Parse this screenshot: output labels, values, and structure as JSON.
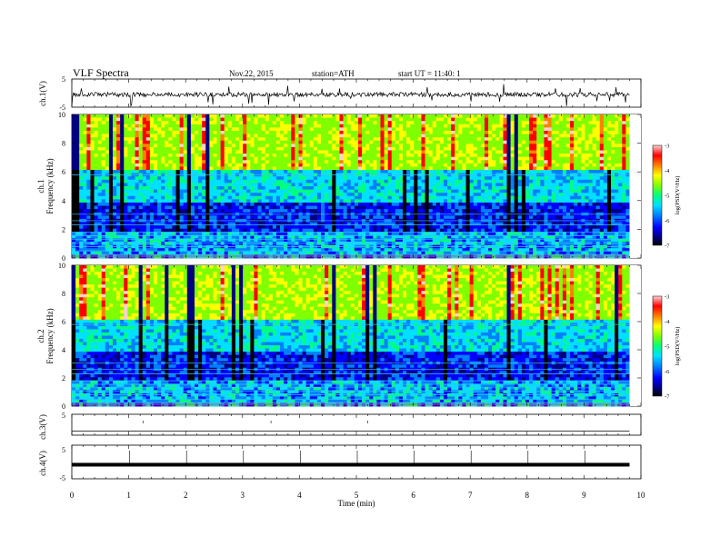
{
  "header": {
    "title": "VLF Spectra",
    "date": "Nov.22, 2015",
    "station": "station=ATH",
    "start": "start  UT =   11:40: 1"
  },
  "axes": {
    "x_label": "Time (min)",
    "freq_label": "Frequency (kHz)",
    "ch1_waveform_label": "ch.1(V)",
    "ch1_spec_label": "ch.1",
    "ch2_spec_label": "ch.2",
    "ch3_label": "ch.3(V)",
    "ch4_label": "ch.4(V)",
    "colorbar_label": "log(PSD(V²/Hz)",
    "volt_ticks": [
      "5",
      "-5"
    ]
  },
  "colors": {
    "colormap": [
      "#000000",
      "#000080",
      "#0000ff",
      "#0080ff",
      "#00e0ff",
      "#00ff80",
      "#80ff00",
      "#ffff00",
      "#ff8000",
      "#ff0000",
      "#ffd0d0"
    ]
  },
  "chart_data": [
    {
      "type": "line",
      "name": "ch.1 waveform",
      "xlim": [
        0,
        10
      ],
      "ylim": [
        -5,
        5
      ],
      "yticks": [
        5,
        -5
      ],
      "data_extent_min": 9.8,
      "baseline_v": -0.5
    },
    {
      "type": "heatmap",
      "name": "ch.1 spectrogram",
      "xlim": [
        0,
        10
      ],
      "ylim": [
        0,
        10
      ],
      "yticks": [
        0,
        2,
        4,
        6,
        8,
        10
      ],
      "colorbar_ticks": [
        -3,
        -4,
        -5,
        -6,
        -7
      ],
      "colorbar_range": [
        -7,
        -3
      ],
      "data_extent_min": 9.8
    },
    {
      "type": "heatmap",
      "name": "ch.2 spectrogram",
      "xlim": [
        0,
        10
      ],
      "ylim": [
        0,
        10
      ],
      "yticks": [
        0,
        2,
        4,
        6,
        8,
        10
      ],
      "colorbar_ticks": [
        -3,
        -4,
        -5,
        -6,
        -7
      ],
      "colorbar_range": [
        -7,
        -3
      ],
      "data_extent_min": 9.8
    },
    {
      "type": "line",
      "name": "ch.3 waveform",
      "xlim": [
        0,
        10
      ],
      "ylim": [
        -5,
        5
      ],
      "yticks": [
        5
      ],
      "baseline_v": 0
    },
    {
      "type": "line",
      "name": "ch.4 waveform",
      "xlim": [
        0,
        10
      ],
      "ylim": [
        -5,
        5
      ],
      "yticks": [
        5,
        -5
      ],
      "baseline_v": 0
    },
    {
      "type": "line",
      "name": "time axis",
      "xticks": [
        0,
        1,
        2,
        3,
        4,
        5,
        6,
        7,
        8,
        9,
        10
      ],
      "xlabels": [
        "0",
        "1",
        "2",
        "3",
        "4",
        "5",
        "6",
        "7",
        "8",
        "9",
        "10"
      ]
    }
  ]
}
